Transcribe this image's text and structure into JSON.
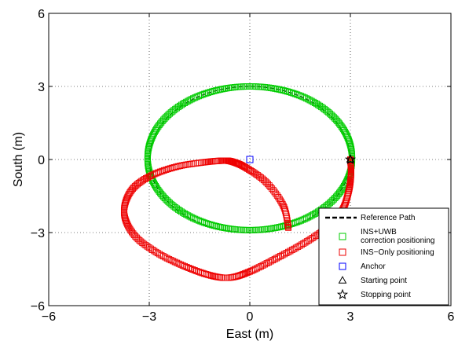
{
  "chart_data": {
    "type": "scatter",
    "xlabel": "East (m)",
    "ylabel": "South (m)",
    "xlim": [
      -6,
      6
    ],
    "ylim": [
      -6,
      6
    ],
    "xticks": [
      "−6",
      "−3",
      "0",
      "3",
      "6"
    ],
    "yticks": [
      "6",
      "3",
      "0",
      "−3",
      "−6"
    ],
    "grid": true,
    "legend_position": "bottom-right",
    "series": [
      {
        "name": "Reference Path",
        "style": "dashed-line",
        "color": "#000000",
        "shape": "ellipse",
        "center": [
          0,
          0
        ],
        "radii": [
          3,
          3
        ]
      },
      {
        "name": "INS+UWB correction positioning",
        "style": "square-markers",
        "color": "#00cc00",
        "shape": "ellipse",
        "center": [
          0,
          0.05
        ],
        "radii": [
          3.05,
          2.95
        ]
      },
      {
        "name": "INS−Only positioning",
        "style": "square-markers",
        "color": "#ee0000",
        "points": [
          [
            3,
            0
          ],
          [
            3.02,
            -0.6
          ],
          [
            2.95,
            -1.3
          ],
          [
            2.75,
            -2.1
          ],
          [
            2.3,
            -2.8
          ],
          [
            1.6,
            -3.45
          ],
          [
            0.8,
            -4.05
          ],
          [
            0,
            -4.6
          ],
          [
            -0.6,
            -4.85
          ],
          [
            -1.2,
            -4.75
          ],
          [
            -2.0,
            -4.35
          ],
          [
            -2.8,
            -3.8
          ],
          [
            -3.45,
            -3.1
          ],
          [
            -3.75,
            -2.2
          ],
          [
            -3.55,
            -1.3
          ],
          [
            -3.0,
            -0.7
          ],
          [
            -2.2,
            -0.3
          ],
          [
            -1.4,
            -0.12
          ],
          [
            -0.8,
            -0.05
          ],
          [
            -0.5,
            -0.1
          ],
          [
            -0.1,
            -0.35
          ],
          [
            0.5,
            -0.95
          ],
          [
            1.0,
            -1.9
          ],
          [
            1.15,
            -2.8
          ]
        ]
      },
      {
        "name": "Anchor",
        "style": "square-marker",
        "color": "#0000ff",
        "points": [
          [
            0,
            0
          ]
        ]
      },
      {
        "name": "Starting point",
        "style": "triangle-marker",
        "color": "#000000",
        "points": [
          [
            3,
            0
          ]
        ]
      },
      {
        "name": "Stopping point",
        "style": "star-marker",
        "color": "#000000",
        "points": [
          [
            3,
            0
          ]
        ]
      }
    ],
    "legend": [
      {
        "label_lines": [
          "Reference Path"
        ],
        "marker": "dashed-line",
        "color": "#000000"
      },
      {
        "label_lines": [
          "INS+UWB",
          "correction positioning"
        ],
        "marker": "square",
        "color": "#00cc00"
      },
      {
        "label_lines": [
          "INS−Only positioning"
        ],
        "marker": "square",
        "color": "#ee0000"
      },
      {
        "label_lines": [
          "Anchor"
        ],
        "marker": "square",
        "color": "#0000ff"
      },
      {
        "label_lines": [
          "Starting point"
        ],
        "marker": "triangle",
        "color": "#000000"
      },
      {
        "label_lines": [
          "Stopping point"
        ],
        "marker": "star",
        "color": "#000000"
      }
    ]
  }
}
